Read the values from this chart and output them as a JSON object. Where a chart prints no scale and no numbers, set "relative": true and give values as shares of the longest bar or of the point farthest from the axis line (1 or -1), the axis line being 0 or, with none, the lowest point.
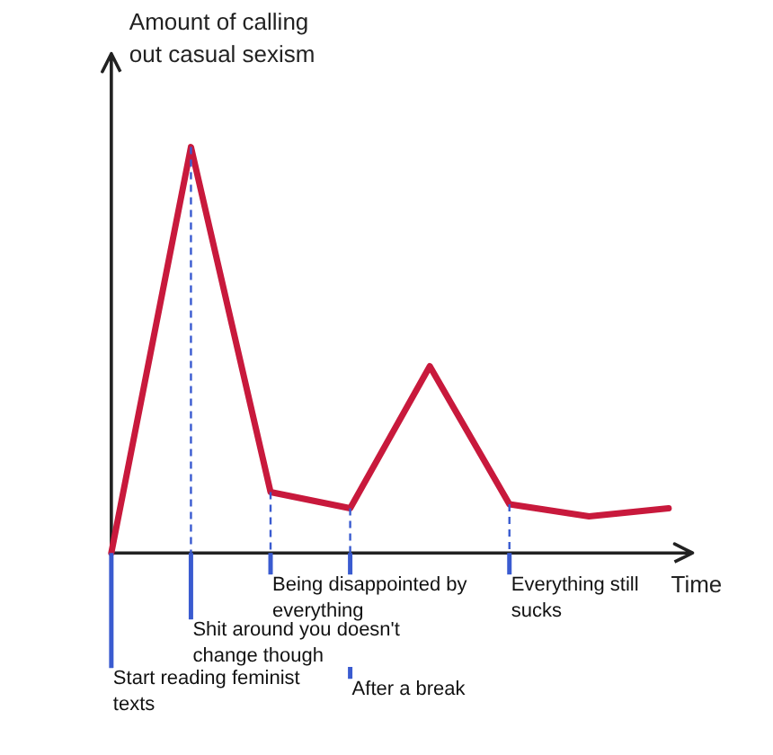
{
  "chart_data": {
    "type": "line",
    "relative": true,
    "xlabel": "Time",
    "ylabel": "Amount of calling out casual sexism",
    "line_style": "solid",
    "categories": [
      null,
      null,
      null,
      null,
      null,
      null,
      null,
      null
    ],
    "series": [
      {
        "color": "#c8193c",
        "values": [
          0,
          1,
          0.15,
          0.11,
          0.46,
          0.12,
          0.09,
          0.11
        ]
      }
    ],
    "annotations": [
      "Start reading feminist texts",
      "Shit around you doesn't change though",
      "Being disappointed by everything",
      "After a break",
      "Everything still sucks"
    ]
  }
}
